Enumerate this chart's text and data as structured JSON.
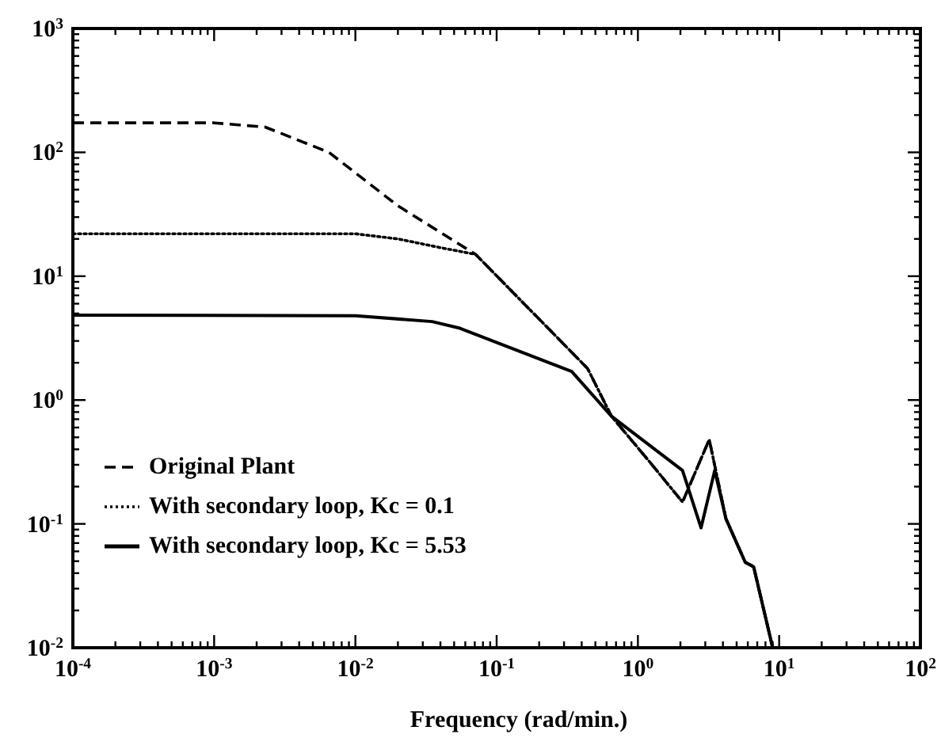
{
  "chart_data": {
    "type": "line",
    "xlabel": "Frequency (rad/min.)",
    "log": "xy",
    "xlim": [
      0.0001,
      100
    ],
    "ylim": [
      0.01,
      1000
    ],
    "xticks": [
      {
        "value": 0.0001,
        "label": "10$^{-4}$"
      },
      {
        "value": 0.0002,
        "label": null
      },
      {
        "value": 0.0003,
        "label": null
      },
      {
        "value": 0.0004,
        "label": null
      },
      {
        "value": 0.0005,
        "label": null
      },
      {
        "value": 0.0006,
        "label": null
      },
      {
        "value": 0.0007,
        "label": null
      },
      {
        "value": 0.0008,
        "label": null
      },
      {
        "value": 0.0009,
        "label": null
      },
      {
        "value": 0.001,
        "label": "10$^{-3}$"
      },
      {
        "value": 0.002,
        "label": null
      },
      {
        "value": 0.003,
        "label": null
      },
      {
        "value": 0.004,
        "label": null
      },
      {
        "value": 0.005,
        "label": null
      },
      {
        "value": 0.006,
        "label": null
      },
      {
        "value": 0.007,
        "label": null
      },
      {
        "value": 0.008,
        "label": null
      },
      {
        "value": 0.009,
        "label": null
      },
      {
        "value": 0.01,
        "label": "10$^{-2}$"
      },
      {
        "value": 0.02,
        "label": null
      },
      {
        "value": 0.03,
        "label": null
      },
      {
        "value": 0.04,
        "label": null
      },
      {
        "value": 0.05,
        "label": null
      },
      {
        "value": 0.06,
        "label": null
      },
      {
        "value": 0.07,
        "label": null
      },
      {
        "value": 0.08,
        "label": null
      },
      {
        "value": 0.09,
        "label": null
      },
      {
        "value": 0.1,
        "label": "10$^{-1}$"
      },
      {
        "value": 0.2,
        "label": null
      },
      {
        "value": 0.3,
        "label": null
      },
      {
        "value": 0.4,
        "label": null
      },
      {
        "value": 0.5,
        "label": null
      },
      {
        "value": 0.6,
        "label": null
      },
      {
        "value": 0.7,
        "label": null
      },
      {
        "value": 0.8,
        "label": null
      },
      {
        "value": 0.9,
        "label": null
      },
      {
        "value": 1,
        "label": "10$^{0}$"
      },
      {
        "value": 2,
        "label": null
      },
      {
        "value": 3,
        "label": null
      },
      {
        "value": 4,
        "label": null
      },
      {
        "value": 5,
        "label": null
      },
      {
        "value": 6,
        "label": null
      },
      {
        "value": 7,
        "label": null
      },
      {
        "value": 8,
        "label": null
      },
      {
        "value": 9,
        "label": null
      },
      {
        "value": 10,
        "label": "10$^{1}$"
      },
      {
        "value": 20,
        "label": null
      },
      {
        "value": 30,
        "label": null
      },
      {
        "value": 40,
        "label": null
      },
      {
        "value": 50,
        "label": null
      },
      {
        "value": 60,
        "label": null
      },
      {
        "value": 70,
        "label": null
      },
      {
        "value": 80,
        "label": null
      },
      {
        "value": 90,
        "label": null
      },
      {
        "value": 100,
        "label": "10$^{2}$"
      }
    ],
    "yticks": [
      {
        "value": 0.01,
        "label": "10$^{-2}$"
      },
      {
        "value": 0.02,
        "label": null
      },
      {
        "value": 0.03,
        "label": null
      },
      {
        "value": 0.04,
        "label": null
      },
      {
        "value": 0.05,
        "label": null
      },
      {
        "value": 0.06,
        "label": null
      },
      {
        "value": 0.07,
        "label": null
      },
      {
        "value": 0.08,
        "label": null
      },
      {
        "value": 0.09,
        "label": null
      },
      {
        "value": 0.1,
        "label": "10$^{-1}$"
      },
      {
        "value": 0.2,
        "label": null
      },
      {
        "value": 0.3,
        "label": null
      },
      {
        "value": 0.4,
        "label": null
      },
      {
        "value": 0.5,
        "label": null
      },
      {
        "value": 0.6,
        "label": null
      },
      {
        "value": 0.7,
        "label": null
      },
      {
        "value": 0.8,
        "label": null
      },
      {
        "value": 0.9,
        "label": null
      },
      {
        "value": 1,
        "label": "10$^{0}$"
      },
      {
        "value": 2,
        "label": null
      },
      {
        "value": 3,
        "label": null
      },
      {
        "value": 4,
        "label": null
      },
      {
        "value": 5,
        "label": null
      },
      {
        "value": 6,
        "label": null
      },
      {
        "value": 7,
        "label": null
      },
      {
        "value": 8,
        "label": null
      },
      {
        "value": 9,
        "label": null
      },
      {
        "value": 10,
        "label": "10$^{1}$"
      },
      {
        "value": 20,
        "label": null
      },
      {
        "value": 30,
        "label": null
      },
      {
        "value": 40,
        "label": null
      },
      {
        "value": 50,
        "label": null
      },
      {
        "value": 60,
        "label": null
      },
      {
        "value": 70,
        "label": null
      },
      {
        "value": 80,
        "label": null
      },
      {
        "value": 90,
        "label": null
      },
      {
        "value": 100,
        "label": "10$^{2}$"
      },
      {
        "value": 200,
        "label": null
      },
      {
        "value": 300,
        "label": null
      },
      {
        "value": 400,
        "label": null
      },
      {
        "value": 500,
        "label": null
      },
      {
        "value": 600,
        "label": null
      },
      {
        "value": 700,
        "label": null
      },
      {
        "value": 800,
        "label": null
      },
      {
        "value": 900,
        "label": null
      },
      {
        "value": 1000,
        "label": "10$^{3}$"
      }
    ],
    "legend": "bottom left",
    "marker": "none",
    "series": [
      {
        "name": "Original Plant",
        "color": "#000000",
        "line_style": "dashed",
        "x": [
          0.0001,
          0.001,
          0.0023,
          0.0065,
          0.02,
          0.071,
          0.44,
          0.65,
          1.26,
          2.07,
          3.2,
          4.2,
          5.75,
          6.6,
          9.0
        ],
        "values": [
          173,
          173,
          160,
          100,
          37,
          15,
          1.8,
          0.74,
          0.3,
          0.15,
          0.48,
          0.11,
          0.049,
          0.045,
          0.01
        ]
      },
      {
        "name": "With secondary loop, Kc = 0.1",
        "color": "#000000",
        "line_style": "dotted",
        "x": [
          0.0001,
          0.01,
          0.02,
          0.04,
          0.071,
          0.44,
          0.65,
          1.26,
          2.07,
          3.2,
          4.2,
          5.75,
          6.6,
          9.0
        ],
        "values": [
          22,
          22,
          20,
          17,
          15,
          1.8,
          0.74,
          0.3,
          0.15,
          0.48,
          0.11,
          0.049,
          0.045,
          0.01
        ]
      },
      {
        "name": "With secondary loop, Kc = 5.53",
        "color": "#000000",
        "line_style": "solid",
        "x": [
          0.0001,
          0.01,
          0.035,
          0.055,
          0.34,
          0.65,
          2.07,
          2.8,
          3.5,
          4.2,
          5.75,
          6.6,
          9.0
        ],
        "values": [
          4.85,
          4.8,
          4.3,
          3.8,
          1.7,
          0.74,
          0.27,
          0.093,
          0.27,
          0.11,
          0.049,
          0.045,
          0.01
        ]
      }
    ]
  }
}
